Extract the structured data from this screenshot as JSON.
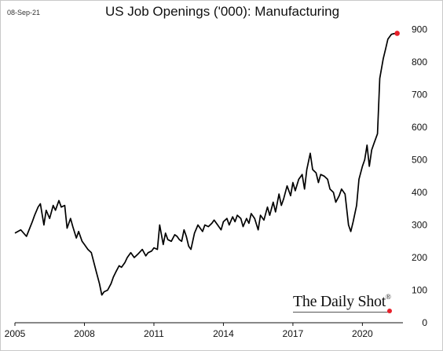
{
  "date_stamp": "08-Sep-21",
  "chart_data": {
    "type": "line",
    "title": "US Job Openings ('000): Manufacturing",
    "xlabel": "",
    "ylabel": "",
    "x_ticks": [
      "2005",
      "2008",
      "2011",
      "2014",
      "2017",
      "2020"
    ],
    "y_ticks": [
      0,
      100,
      200,
      300,
      400,
      500,
      600,
      700,
      800,
      900
    ],
    "ylim": [
      0,
      900
    ],
    "xlim": [
      2005,
      2021.75
    ],
    "grid": false,
    "y_axis_side": "right",
    "line_color": "#000000",
    "end_marker_color": "#e8202a",
    "series": [
      {
        "x": [
          2005.0,
          2005.25,
          2005.5,
          2005.75,
          2005.85,
          2006.0,
          2006.1,
          2006.25,
          2006.35,
          2006.5,
          2006.65,
          2006.75,
          2006.9,
          2007.0,
          2007.15,
          2007.25,
          2007.4,
          2007.5,
          2007.65,
          2007.75,
          2007.9,
          2008.0,
          2008.15,
          2008.3,
          2008.5,
          2008.65,
          2008.75,
          2008.85,
          2009.0,
          2009.15,
          2009.25,
          2009.35,
          2009.5,
          2009.6,
          2009.75,
          2009.85,
          2010.0,
          2010.15,
          2010.3,
          2010.5,
          2010.65,
          2010.75,
          2010.9,
          2011.0,
          2011.15,
          2011.25,
          2011.4,
          2011.5,
          2011.6,
          2011.75,
          2011.9,
          2012.0,
          2012.1,
          2012.2,
          2012.3,
          2012.4,
          2012.5,
          2012.6,
          2012.75,
          2012.9,
          2013.0,
          2013.1,
          2013.2,
          2013.35,
          2013.5,
          2013.6,
          2013.75,
          2013.9,
          2014.0,
          2014.15,
          2014.25,
          2014.4,
          2014.5,
          2014.6,
          2014.75,
          2014.85,
          2015.0,
          2015.1,
          2015.2,
          2015.35,
          2015.5,
          2015.6,
          2015.75,
          2015.9,
          2016.0,
          2016.15,
          2016.25,
          2016.4,
          2016.5,
          2016.6,
          2016.75,
          2016.9,
          2017.0,
          2017.1,
          2017.25,
          2017.4,
          2017.5,
          2017.6,
          2017.75,
          2017.85,
          2018.0,
          2018.1,
          2018.2,
          2018.35,
          2018.5,
          2018.6,
          2018.75,
          2018.85,
          2019.0,
          2019.1,
          2019.25,
          2019.4,
          2019.5,
          2019.6,
          2019.75,
          2019.85,
          2020.0,
          2020.1,
          2020.2,
          2020.3,
          2020.4,
          2020.5,
          2020.65,
          2020.75,
          2020.9,
          2021.0,
          2021.1,
          2021.2,
          2021.25,
          2021.35,
          2021.5
        ],
        "y": [
          275,
          285,
          265,
          310,
          330,
          355,
          365,
          300,
          345,
          320,
          360,
          345,
          375,
          355,
          360,
          290,
          320,
          295,
          260,
          280,
          250,
          240,
          225,
          215,
          160,
          120,
          85,
          95,
          100,
          120,
          140,
          155,
          175,
          170,
          185,
          200,
          215,
          200,
          210,
          225,
          205,
          215,
          220,
          230,
          225,
          300,
          240,
          275,
          255,
          250,
          270,
          265,
          255,
          250,
          285,
          265,
          235,
          225,
          275,
          300,
          290,
          280,
          300,
          295,
          305,
          315,
          300,
          285,
          310,
          320,
          300,
          325,
          310,
          330,
          320,
          295,
          320,
          305,
          335,
          320,
          285,
          330,
          315,
          355,
          330,
          370,
          340,
          395,
          360,
          380,
          420,
          390,
          430,
          405,
          440,
          455,
          410,
          470,
          520,
          470,
          460,
          430,
          455,
          450,
          440,
          410,
          400,
          370,
          390,
          410,
          395,
          300,
          280,
          310,
          360,
          440,
          480,
          500,
          545,
          480,
          530,
          550,
          580,
          750,
          810,
          840,
          870,
          880,
          885,
          887,
          888
        ]
      }
    ]
  },
  "watermark": {
    "text": "The Daily Shot",
    "reg_mark": "®",
    "dot_color": "#e8202a"
  }
}
